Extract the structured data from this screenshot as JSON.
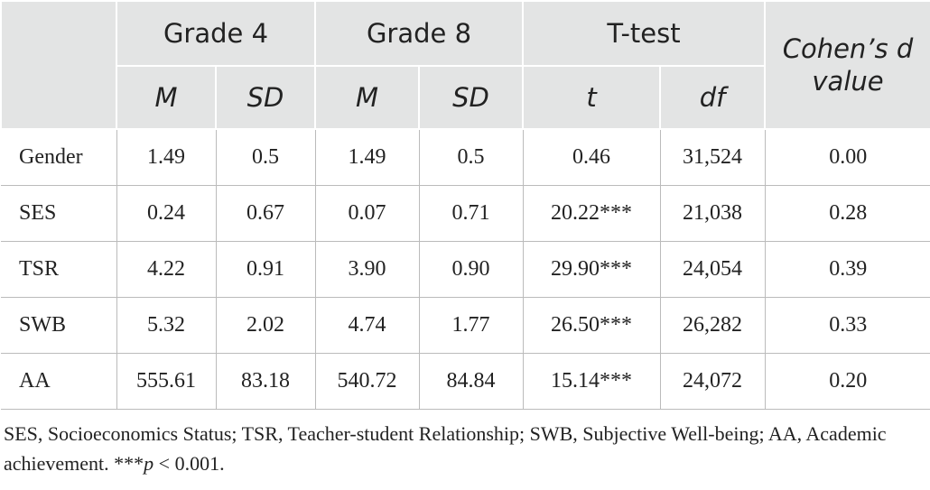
{
  "table": {
    "header_groups": [
      "Grade 4",
      "Grade 8",
      "T-test",
      "Cohen’s d value"
    ],
    "subheaders": [
      "M",
      "SD",
      "M",
      "SD",
      "t",
      "df"
    ],
    "rows": [
      [
        "Gender",
        "1.49",
        "0.5",
        "1.49",
        "0.5",
        "0.46",
        "31,524",
        "0.00"
      ],
      [
        "SES",
        "0.24",
        "0.67",
        "0.07",
        "0.71",
        "20.22***",
        "21,038",
        "0.28"
      ],
      [
        "TSR",
        "4.22",
        "0.91",
        "3.90",
        "0.90",
        "29.90***",
        "24,054",
        "0.39"
      ],
      [
        "SWB",
        "5.32",
        "2.02",
        "4.74",
        "1.77",
        "26.50***",
        "26,282",
        "0.33"
      ],
      [
        "AA",
        "555.61",
        "83.18",
        "540.72",
        "84.84",
        "15.14***",
        "24,072",
        "0.20"
      ]
    ]
  },
  "footnote": [
    "SES, Socioeconomics Status; TSR, Teacher-student Relationship; SWB, Subjective Well-being; AA, Academic achievement. ***",
    "p",
    " < 0.001."
  ]
}
